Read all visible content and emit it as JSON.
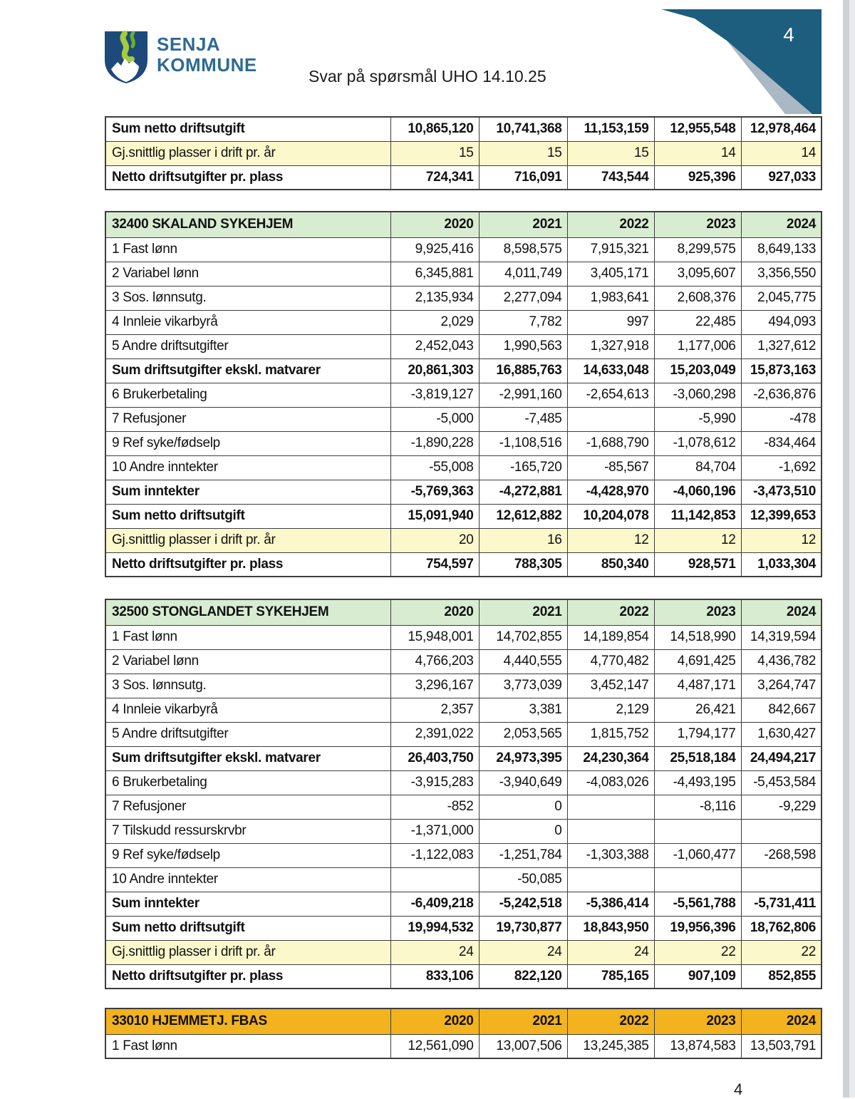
{
  "header": {
    "logo": {
      "line1": "SENJA",
      "line2": "KOMMUNE"
    },
    "title": "Svar på spørsmål UHO 14.10.25",
    "corner_page_number": "4"
  },
  "footer": {
    "page_number": "4"
  },
  "colors": {
    "table_header_green": "#d8ecd2",
    "table_header_orange": "#f2b31e",
    "highlight_row_yellow": "#fbf8cc",
    "table_border": "#3d3d3d",
    "corner_teal": "#1d5d7d",
    "corner_gray": "#a9b8c2",
    "logo_shield_blue": "#1d4a7a",
    "logo_green_light": "#a4cc3c",
    "logo_green_dark": "#6aaf2e",
    "logo_text_blue": "#2d6b93"
  },
  "tables": [
    {
      "id": "carryover",
      "title": null,
      "years": null,
      "header_color": null,
      "rows": [
        {
          "label": "Sum netto driftsutgift",
          "style": "bold",
          "values": [
            "10,865,120",
            "10,741,368",
            "11,153,159",
            "12,955,548",
            "12,978,464"
          ]
        },
        {
          "label": "Gj.snittlig plasser i drift pr. år",
          "style": "yellow",
          "values": [
            "15",
            "15",
            "15",
            "14",
            "14"
          ]
        },
        {
          "label": "Netto driftsutgifter pr. plass",
          "style": "bold",
          "values": [
            "724,341",
            "716,091",
            "743,544",
            "925,396",
            "927,033"
          ]
        }
      ]
    },
    {
      "id": "32400-skaland-sykehjem",
      "title": "32400 SKALAND SYKEHJEM",
      "years": [
        "2020",
        "2021",
        "2022",
        "2023",
        "2024"
      ],
      "header_color": "green",
      "rows": [
        {
          "label": "1 Fast lønn",
          "style": "normal",
          "values": [
            "9,925,416",
            "8,598,575",
            "7,915,321",
            "8,299,575",
            "8,649,133"
          ]
        },
        {
          "label": "2 Variabel lønn",
          "style": "normal",
          "values": [
            "6,345,881",
            "4,011,749",
            "3,405,171",
            "3,095,607",
            "3,356,550"
          ]
        },
        {
          "label": "3 Sos. lønnsutg.",
          "style": "normal",
          "values": [
            "2,135,934",
            "2,277,094",
            "1,983,641",
            "2,608,376",
            "2,045,775"
          ]
        },
        {
          "label": "4 Innleie vikarbyrå",
          "style": "normal",
          "values": [
            "2,029",
            "7,782",
            "997",
            "22,485",
            "494,093"
          ]
        },
        {
          "label": "5 Andre driftsutgifter",
          "style": "normal",
          "values": [
            "2,452,043",
            "1,990,563",
            "1,327,918",
            "1,177,006",
            "1,327,612"
          ]
        },
        {
          "label": "Sum driftsutgifter ekskl. matvarer",
          "style": "bold",
          "values": [
            "20,861,303",
            "16,885,763",
            "14,633,048",
            "15,203,049",
            "15,873,163"
          ]
        },
        {
          "label": "6 Brukerbetaling",
          "style": "normal",
          "values": [
            "-3,819,127",
            "-2,991,160",
            "-2,654,613",
            "-3,060,298",
            "-2,636,876"
          ]
        },
        {
          "label": "7 Refusjoner",
          "style": "normal",
          "values": [
            "-5,000",
            "-7,485",
            "",
            "-5,990",
            "-478"
          ]
        },
        {
          "label": "9 Ref syke/fødselp",
          "style": "normal",
          "values": [
            "-1,890,228",
            "-1,108,516",
            "-1,688,790",
            "-1,078,612",
            "-834,464"
          ]
        },
        {
          "label": "10 Andre inntekter",
          "style": "normal",
          "values": [
            "-55,008",
            "-165,720",
            "-85,567",
            "84,704",
            "-1,692"
          ]
        },
        {
          "label": "Sum inntekter",
          "style": "bold",
          "values": [
            "-5,769,363",
            "-4,272,881",
            "-4,428,970",
            "-4,060,196",
            "-3,473,510"
          ]
        },
        {
          "label": "Sum netto driftsutgift",
          "style": "bold",
          "values": [
            "15,091,940",
            "12,612,882",
            "10,204,078",
            "11,142,853",
            "12,399,653"
          ]
        },
        {
          "label": "Gj.snittlig plasser i drift pr. år",
          "style": "yellow",
          "values": [
            "20",
            "16",
            "12",
            "12",
            "12"
          ]
        },
        {
          "label": "Netto driftsutgifter pr. plass",
          "style": "bold",
          "values": [
            "754,597",
            "788,305",
            "850,340",
            "928,571",
            "1,033,304"
          ]
        }
      ]
    },
    {
      "id": "32500-stonglandet-sykehjem",
      "title": "32500 STONGLANDET SYKEHJEM",
      "years": [
        "2020",
        "2021",
        "2022",
        "2023",
        "2024"
      ],
      "header_color": "green",
      "rows": [
        {
          "label": "1 Fast lønn",
          "style": "normal",
          "values": [
            "15,948,001",
            "14,702,855",
            "14,189,854",
            "14,518,990",
            "14,319,594"
          ]
        },
        {
          "label": "2 Variabel lønn",
          "style": "normal",
          "values": [
            "4,766,203",
            "4,440,555",
            "4,770,482",
            "4,691,425",
            "4,436,782"
          ]
        },
        {
          "label": "3 Sos. lønnsutg.",
          "style": "normal",
          "values": [
            "3,296,167",
            "3,773,039",
            "3,452,147",
            "4,487,171",
            "3,264,747"
          ]
        },
        {
          "label": "4 Innleie vikarbyrå",
          "style": "normal",
          "values": [
            "2,357",
            "3,381",
            "2,129",
            "26,421",
            "842,667"
          ]
        },
        {
          "label": "5 Andre driftsutgifter",
          "style": "normal",
          "values": [
            "2,391,022",
            "2,053,565",
            "1,815,752",
            "1,794,177",
            "1,630,427"
          ]
        },
        {
          "label": "Sum driftsutgifter ekskl. matvarer",
          "style": "bold",
          "values": [
            "26,403,750",
            "24,973,395",
            "24,230,364",
            "25,518,184",
            "24,494,217"
          ]
        },
        {
          "label": "6 Brukerbetaling",
          "style": "normal",
          "values": [
            "-3,915,283",
            "-3,940,649",
            "-4,083,026",
            "-4,493,195",
            "-5,453,584"
          ]
        },
        {
          "label": "7 Refusjoner",
          "style": "normal",
          "values": [
            "-852",
            "0",
            "",
            "-8,116",
            "-9,229"
          ]
        },
        {
          "label": "7 Tilskudd ressurskrvbr",
          "style": "normal",
          "values": [
            "-1,371,000",
            "0",
            "",
            "",
            ""
          ]
        },
        {
          "label": "9 Ref syke/fødselp",
          "style": "normal",
          "values": [
            "-1,122,083",
            "-1,251,784",
            "-1,303,388",
            "-1,060,477",
            "-268,598"
          ]
        },
        {
          "label": "10 Andre inntekter",
          "style": "normal",
          "values": [
            "",
            "-50,085",
            "",
            "",
            ""
          ]
        },
        {
          "label": "Sum inntekter",
          "style": "bold",
          "values": [
            "-6,409,218",
            "-5,242,518",
            "-5,386,414",
            "-5,561,788",
            "-5,731,411"
          ]
        },
        {
          "label": "Sum netto driftsutgift",
          "style": "bold",
          "values": [
            "19,994,532",
            "19,730,877",
            "18,843,950",
            "19,956,396",
            "18,762,806"
          ]
        },
        {
          "label": "Gj.snittlig plasser i drift pr. år",
          "style": "yellow",
          "values": [
            "24",
            "24",
            "24",
            "22",
            "22"
          ]
        },
        {
          "label": "Netto driftsutgifter pr. plass",
          "style": "bold",
          "values": [
            "833,106",
            "822,120",
            "785,165",
            "907,109",
            "852,855"
          ]
        }
      ]
    },
    {
      "id": "33010-hjemmetj-fbas",
      "title": "33010 HJEMMETJ. FBAS",
      "years": [
        "2020",
        "2021",
        "2022",
        "2023",
        "2024"
      ],
      "header_color": "orange",
      "rows": [
        {
          "label": "1 Fast lønn",
          "style": "normal",
          "values": [
            "12,561,090",
            "13,007,506",
            "13,245,385",
            "13,874,583",
            "13,503,791"
          ]
        }
      ]
    }
  ]
}
